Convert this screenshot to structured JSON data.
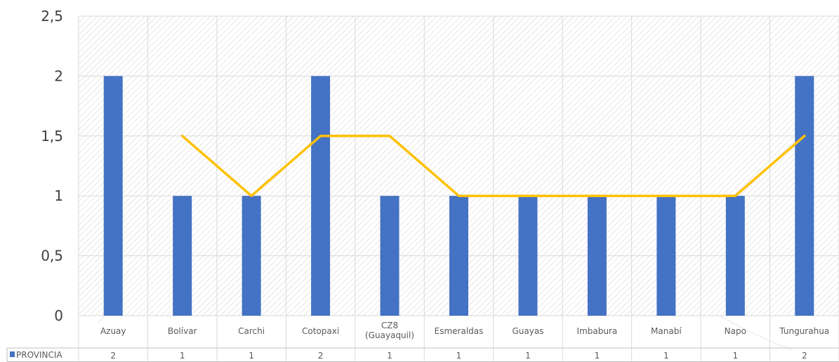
{
  "chart_data": {
    "type": "bar",
    "categories": [
      "Azuay",
      "Bolívar",
      "Carchi",
      "Cotopaxi",
      "CZ8 (Guayaquil)",
      "Esmeraldas",
      "Guayas",
      "Imbabura",
      "Manabí",
      "Napo",
      "Tungurahua"
    ],
    "category_lines": [
      [
        "Azuay"
      ],
      [
        "Bolívar"
      ],
      [
        "Carchi"
      ],
      [
        "Cotopaxi"
      ],
      [
        "CZ8",
        "(Guayaquil)"
      ],
      [
        "Esmeraldas"
      ],
      [
        "Guayas"
      ],
      [
        "Imbabura"
      ],
      [
        "Manabí"
      ],
      [
        "Napo"
      ],
      [
        "Tungurahua"
      ]
    ],
    "series": [
      {
        "name": "PROVINCIA",
        "type": "bar",
        "color": "#4472C4",
        "values": [
          2,
          1,
          1,
          2,
          1,
          1,
          1,
          1,
          1,
          1,
          2
        ]
      },
      {
        "type": "line",
        "color": "#FFC000",
        "values": [
          null,
          1.5,
          1,
          1.5,
          1.5,
          1,
          1,
          1,
          1,
          1,
          1.5
        ]
      }
    ],
    "yticks": [
      "0",
      "0,5",
      "1",
      "1,5",
      "2",
      "2,5"
    ],
    "ylim": [
      0,
      2.5
    ],
    "table_values": [
      "2",
      "1",
      "1",
      "2",
      "1",
      "1",
      "1",
      "1",
      "1",
      "1",
      "2"
    ],
    "grid": true,
    "data_table": true,
    "title": "",
    "xlabel": "",
    "ylabel": ""
  }
}
